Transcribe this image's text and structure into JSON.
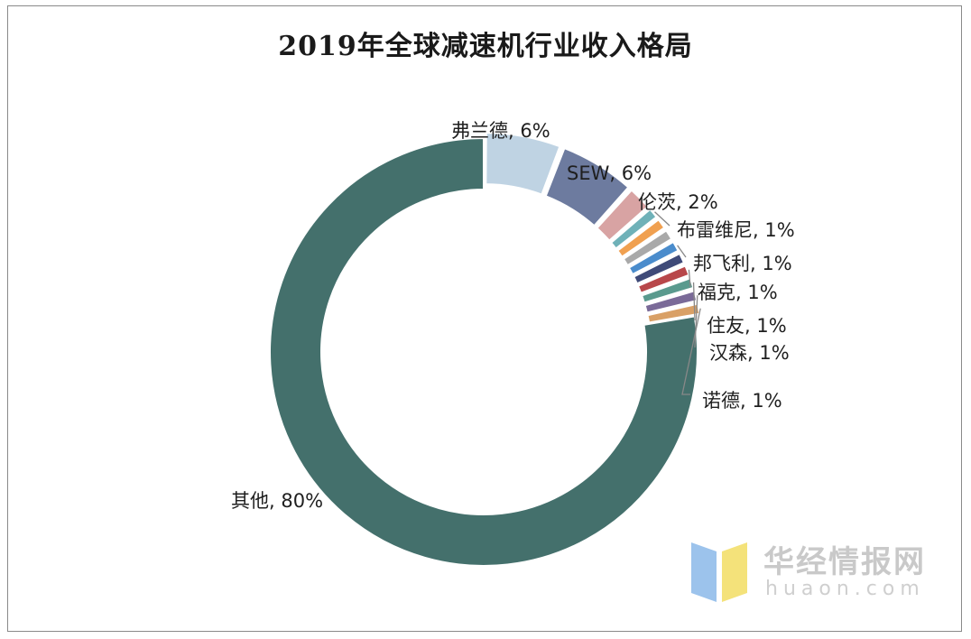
{
  "chart_data": {
    "type": "pie",
    "title": "2019年全球减速机行业收入格局",
    "slices": [
      {
        "name": "弗兰德",
        "value": 6,
        "label": "弗兰德, 6%",
        "color": "#bfd3e3"
      },
      {
        "name": "SEW",
        "value": 6,
        "label": "SEW, 6%",
        "color": "#6d7b9f"
      },
      {
        "name": "伦茨",
        "value": 2,
        "label": "伦茨, 2%",
        "color": "#d8a3a3"
      },
      {
        "name": "布雷维尼",
        "value": 1,
        "label": "布雷维尼, 1%",
        "color": "#6fb1b8"
      },
      {
        "name": "b5",
        "value": 1,
        "label": "",
        "color": "#f0a050"
      },
      {
        "name": "b6",
        "value": 1,
        "label": "",
        "color": "#a9a9a9"
      },
      {
        "name": "邦飞利",
        "value": 1,
        "label": "邦飞利, 1%",
        "color": "#4a8ccc"
      },
      {
        "name": "b8",
        "value": 1,
        "label": "",
        "color": "#3f4a78"
      },
      {
        "name": "福克",
        "value": 1,
        "label": "福克, 1%",
        "color": "#b8474a"
      },
      {
        "name": "住友",
        "value": 1,
        "label": "住友, 1%",
        "color": "#5a9a8e"
      },
      {
        "name": "汉森",
        "value": 1,
        "label": "汉森, 1%",
        "color": "#7a6a98"
      },
      {
        "name": "诺德",
        "value": 1,
        "label": "诺德, 1%",
        "color": "#d9a066"
      },
      {
        "name": "其他",
        "value": 80,
        "label": "其他, 80%",
        "color": "#44706c"
      }
    ]
  },
  "watermark": {
    "name": "华经情报网",
    "domain": "huaon.com"
  }
}
